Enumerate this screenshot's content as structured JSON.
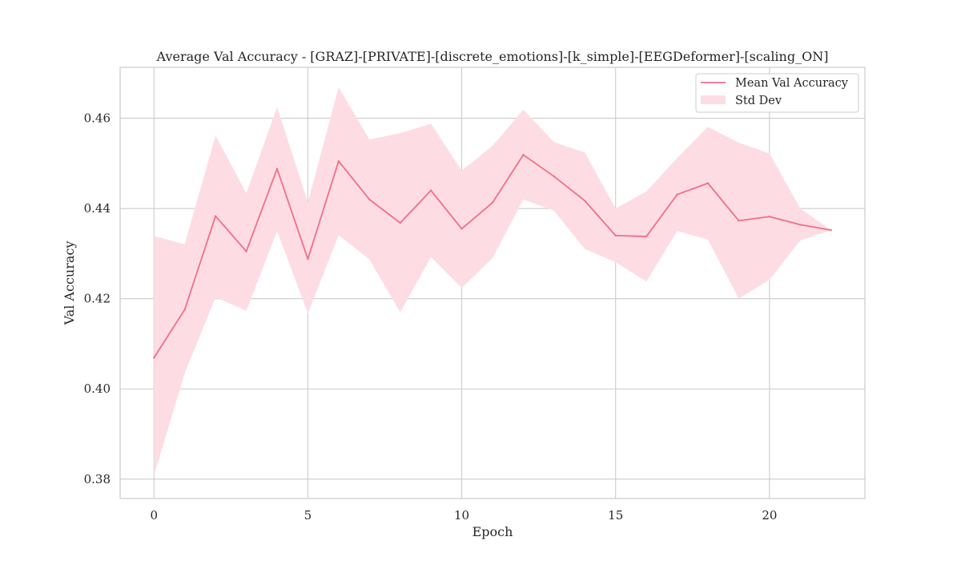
{
  "chart_data": {
    "type": "line",
    "title": "Average Val Accuracy - [GRAZ]-[PRIVATE]-[discrete_emotions]-[k_simple]-[EEGDeformer]-[scaling_ON]",
    "xlabel": "Epoch",
    "ylabel": "Val Accuracy",
    "xlim": [
      -1.1,
      23.1
    ],
    "ylim": [
      0.3757,
      0.4713
    ],
    "xticks": [
      0,
      5,
      10,
      15,
      20
    ],
    "yticks": [
      0.38,
      0.4,
      0.42,
      0.44,
      0.46
    ],
    "xtick_labels": [
      "0",
      "5",
      "10",
      "15",
      "20"
    ],
    "ytick_labels": [
      "0.38",
      "0.40",
      "0.42",
      "0.44",
      "0.46"
    ],
    "grid": true,
    "legend_position": "top-right",
    "x": [
      0,
      1,
      2,
      3,
      4,
      5,
      6,
      7,
      8,
      9,
      10,
      11,
      12,
      13,
      14,
      15,
      16,
      17,
      18,
      19,
      20,
      21,
      22
    ],
    "series": [
      {
        "name": "Mean Val Accuracy",
        "kind": "line",
        "color": "#f36e86",
        "values": [
          0.4069,
          0.4176,
          0.4383,
          0.4305,
          0.4488,
          0.4288,
          0.4505,
          0.442,
          0.4368,
          0.444,
          0.4355,
          0.4413,
          0.4519,
          0.4471,
          0.4417,
          0.434,
          0.4338,
          0.4431,
          0.4456,
          0.4373,
          0.4382,
          0.4364,
          0.4352
        ]
      },
      {
        "name": "Std Dev",
        "kind": "band",
        "color": "#fddde3",
        "lower": [
          0.3808,
          0.4035,
          0.4203,
          0.4173,
          0.435,
          0.4167,
          0.4341,
          0.4287,
          0.417,
          0.4292,
          0.4224,
          0.429,
          0.442,
          0.4395,
          0.431,
          0.4281,
          0.4238,
          0.435,
          0.4331,
          0.42,
          0.4242,
          0.4329,
          0.4352
        ],
        "upper": [
          0.4339,
          0.4321,
          0.4562,
          0.4434,
          0.4625,
          0.4414,
          0.4669,
          0.4553,
          0.4567,
          0.4588,
          0.4484,
          0.4539,
          0.4619,
          0.4547,
          0.4524,
          0.44,
          0.4438,
          0.4512,
          0.4581,
          0.4546,
          0.4522,
          0.44,
          0.4352
        ]
      }
    ]
  }
}
